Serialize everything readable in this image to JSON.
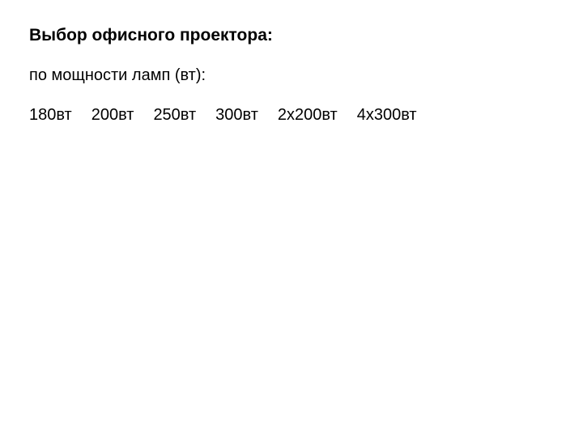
{
  "heading": "Выбор офисного проектора:",
  "subheading": "по мощности ламп (вт):",
  "options": {
    "item0": "180вт",
    "item1": "200вт",
    "item2": "250вт",
    "item3": "300вт",
    "item4": "2х200вт",
    "item5": "4х300вт"
  },
  "colors": {
    "background": "#ffffff",
    "text": "#000000"
  },
  "typography": {
    "heading_fontsize": 21,
    "heading_weight": "bold",
    "body_fontsize": 20,
    "body_weight": "normal",
    "font_family": "Arial"
  }
}
